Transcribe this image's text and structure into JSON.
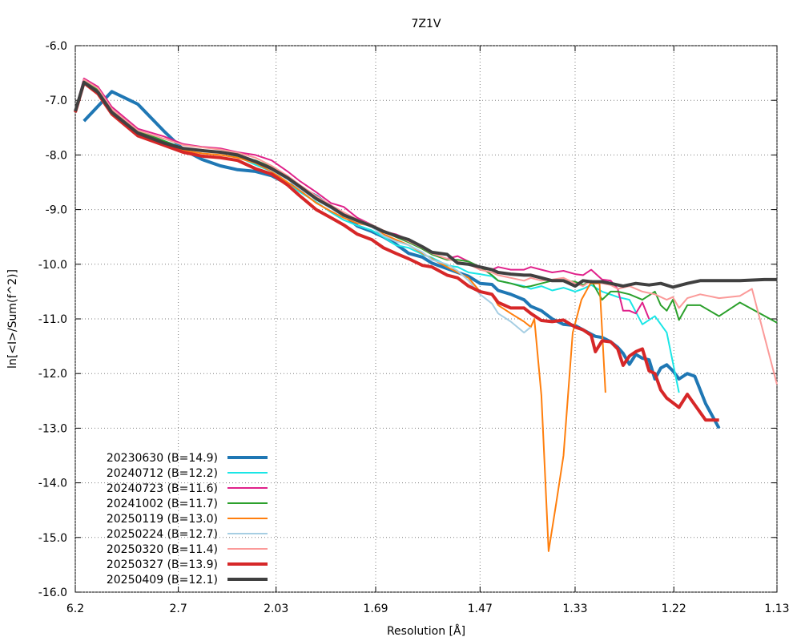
{
  "chart_data": {
    "type": "line",
    "title": "7Z1V",
    "xlabel": "Resolution [Å]",
    "ylabel": "ln[<I>/Sum(f^2)]",
    "x_scale": "1/d^2",
    "xlim": [
      6.2,
      1.13
    ],
    "ylim": [
      -16.0,
      -6.0
    ],
    "grid": true,
    "legend_position": "bottom-left",
    "x_ticks": [
      "6.2",
      "2.7",
      "2.03",
      "1.69",
      "1.47",
      "1.33",
      "1.22",
      "1.13"
    ],
    "y_ticks": [
      "-6.0",
      "-7.0",
      "-8.0",
      "-9.0",
      "-10.0",
      "-11.0",
      "-12.0",
      "-13.0",
      "-14.0",
      "-15.0",
      "-16.0"
    ],
    "series": [
      {
        "name": "20230630 (B=14.9)",
        "color": "#1f77b4",
        "width": 4,
        "x": [
          5.32,
          3.91,
          3.27,
          2.87,
          2.65,
          2.48,
          2.34,
          2.23,
          2.13,
          2.05,
          1.98,
          1.93,
          1.87,
          1.82,
          1.78,
          1.74,
          1.7,
          1.67,
          1.64,
          1.61,
          1.58,
          1.56,
          1.53,
          1.51,
          1.49,
          1.47,
          1.45,
          1.44,
          1.42,
          1.4,
          1.39,
          1.375,
          1.36,
          1.345,
          1.33,
          1.32,
          1.31,
          1.305,
          1.297,
          1.287,
          1.279,
          1.273,
          1.266,
          1.259,
          1.252,
          1.245,
          1.239,
          1.233,
          1.227,
          1.221,
          1.215,
          1.207,
          1.2,
          1.19,
          1.178
        ],
        "y": [
          -7.38,
          -6.84,
          -7.07,
          -7.56,
          -7.9,
          -8.08,
          -8.2,
          -8.27,
          -8.3,
          -8.38,
          -8.53,
          -8.6,
          -8.75,
          -8.95,
          -9.1,
          -9.3,
          -9.4,
          -9.5,
          -9.63,
          -9.8,
          -9.87,
          -9.98,
          -10.08,
          -10.15,
          -10.22,
          -10.35,
          -10.37,
          -10.48,
          -10.55,
          -10.65,
          -10.77,
          -10.85,
          -11.0,
          -11.1,
          -11.12,
          -11.2,
          -11.28,
          -11.32,
          -11.34,
          -11.42,
          -11.52,
          -11.63,
          -11.83,
          -11.65,
          -11.72,
          -11.75,
          -12.1,
          -11.9,
          -11.84,
          -11.95,
          -12.1,
          -12.0,
          -12.05,
          -12.55,
          -13.0
        ]
      },
      {
        "name": "20240712 (B=12.2)",
        "color": "#1ae6e6",
        "width": 2,
        "x": [
          6.2,
          5.32,
          4.45,
          3.91,
          3.27,
          2.87,
          2.65,
          2.48,
          2.34,
          2.23,
          2.13,
          2.05,
          1.98,
          1.93,
          1.87,
          1.82,
          1.78,
          1.74,
          1.7,
          1.67,
          1.64,
          1.61,
          1.58,
          1.56,
          1.53,
          1.51,
          1.49,
          1.47,
          1.45,
          1.44,
          1.42,
          1.4,
          1.39,
          1.375,
          1.36,
          1.345,
          1.33,
          1.32,
          1.31,
          1.297,
          1.279,
          1.266,
          1.252,
          1.239,
          1.227,
          1.215
        ],
        "y": [
          -7.18,
          -6.68,
          -6.82,
          -7.2,
          -7.55,
          -7.74,
          -7.87,
          -7.92,
          -7.95,
          -8.03,
          -8.18,
          -8.3,
          -8.52,
          -8.68,
          -8.86,
          -9.05,
          -9.19,
          -9.29,
          -9.38,
          -9.5,
          -9.65,
          -9.7,
          -9.82,
          -9.88,
          -10.02,
          -10.05,
          -10.15,
          -10.18,
          -10.22,
          -10.3,
          -10.35,
          -10.4,
          -10.45,
          -10.4,
          -10.48,
          -10.43,
          -10.5,
          -10.45,
          -10.38,
          -10.5,
          -10.6,
          -10.65,
          -11.1,
          -10.95,
          -11.25,
          -12.35
        ]
      },
      {
        "name": "20240723 (B=11.6)",
        "color": "#e0218a",
        "width": 2,
        "x": [
          6.2,
          5.32,
          4.45,
          3.91,
          3.27,
          2.87,
          2.65,
          2.48,
          2.34,
          2.23,
          2.13,
          2.05,
          1.98,
          1.93,
          1.87,
          1.82,
          1.78,
          1.74,
          1.7,
          1.67,
          1.64,
          1.61,
          1.58,
          1.56,
          1.53,
          1.51,
          1.49,
          1.47,
          1.45,
          1.44,
          1.42,
          1.4,
          1.39,
          1.375,
          1.36,
          1.345,
          1.33,
          1.32,
          1.31,
          1.297,
          1.287,
          1.279,
          1.273,
          1.266,
          1.259,
          1.252,
          1.245
        ],
        "y": [
          -7.18,
          -6.6,
          -6.75,
          -7.12,
          -7.52,
          -7.66,
          -7.8,
          -7.85,
          -7.88,
          -7.95,
          -8.0,
          -8.1,
          -8.3,
          -8.48,
          -8.68,
          -8.88,
          -8.95,
          -9.15,
          -9.28,
          -9.4,
          -9.45,
          -9.55,
          -9.72,
          -9.82,
          -9.9,
          -9.85,
          -9.95,
          -10.05,
          -10.1,
          -10.05,
          -10.1,
          -10.1,
          -10.05,
          -10.1,
          -10.15,
          -10.12,
          -10.18,
          -10.2,
          -10.1,
          -10.28,
          -10.3,
          -10.45,
          -10.85,
          -10.85,
          -10.9,
          -10.7,
          -11.0
        ]
      },
      {
        "name": "20241002 (B=11.7)",
        "color": "#2ca02c",
        "width": 2,
        "x": [
          6.2,
          5.32,
          4.45,
          3.91,
          3.27,
          2.87,
          2.65,
          2.48,
          2.34,
          2.23,
          2.13,
          2.05,
          1.98,
          1.93,
          1.87,
          1.82,
          1.78,
          1.74,
          1.7,
          1.67,
          1.64,
          1.61,
          1.58,
          1.56,
          1.53,
          1.51,
          1.49,
          1.47,
          1.45,
          1.44,
          1.42,
          1.4,
          1.39,
          1.375,
          1.36,
          1.345,
          1.33,
          1.32,
          1.31,
          1.297,
          1.287,
          1.279,
          1.266,
          1.252,
          1.239,
          1.233,
          1.227,
          1.221,
          1.215,
          1.207,
          1.195,
          1.178,
          1.16,
          1.13
        ],
        "y": [
          -7.2,
          -6.65,
          -6.8,
          -7.18,
          -7.56,
          -7.74,
          -7.88,
          -7.92,
          -7.95,
          -8.02,
          -8.1,
          -8.22,
          -8.4,
          -8.58,
          -8.78,
          -8.92,
          -9.08,
          -9.2,
          -9.3,
          -9.4,
          -9.5,
          -9.6,
          -9.72,
          -9.82,
          -9.92,
          -9.92,
          -9.95,
          -10.05,
          -10.2,
          -10.3,
          -10.35,
          -10.42,
          -10.4,
          -10.35,
          -10.3,
          -10.3,
          -10.32,
          -10.38,
          -10.3,
          -10.65,
          -10.5,
          -10.5,
          -10.55,
          -10.65,
          -10.5,
          -10.75,
          -10.85,
          -10.65,
          -11.02,
          -10.75,
          -10.75,
          -10.95,
          -10.7,
          -11.07
        ]
      },
      {
        "name": "20250119 (B=13.0)",
        "color": "#ff7f0e",
        "width": 2,
        "x": [
          6.2,
          5.32,
          4.45,
          3.91,
          3.27,
          2.87,
          2.65,
          2.48,
          2.34,
          2.23,
          2.13,
          2.05,
          1.98,
          1.93,
          1.87,
          1.82,
          1.78,
          1.74,
          1.7,
          1.67,
          1.64,
          1.61,
          1.58,
          1.56,
          1.53,
          1.51,
          1.49,
          1.47,
          1.45,
          1.44,
          1.42,
          1.4,
          1.39,
          1.385,
          1.375,
          1.365,
          1.355,
          1.345,
          1.333,
          1.322,
          1.311,
          1.3,
          1.293
        ],
        "y": [
          -7.22,
          -6.7,
          -6.85,
          -7.22,
          -7.62,
          -7.8,
          -7.92,
          -7.97,
          -8.0,
          -8.05,
          -8.15,
          -8.3,
          -8.5,
          -8.65,
          -8.88,
          -9.03,
          -9.15,
          -9.25,
          -9.3,
          -9.45,
          -9.55,
          -9.65,
          -9.8,
          -9.9,
          -10.05,
          -10.15,
          -10.25,
          -10.5,
          -10.55,
          -10.75,
          -10.9,
          -11.05,
          -11.15,
          -11.0,
          -12.4,
          -15.25,
          -14.4,
          -13.5,
          -11.25,
          -10.65,
          -10.35,
          -10.35,
          -12.35
        ]
      },
      {
        "name": "20250224 (B=12.7)",
        "color": "#a6cee3",
        "width": 2,
        "x": [
          6.2,
          5.32,
          4.45,
          3.91,
          3.27,
          2.87,
          2.65,
          2.48,
          2.34,
          2.23,
          2.13,
          2.05,
          1.98,
          1.93,
          1.87,
          1.82,
          1.78,
          1.74,
          1.7,
          1.67,
          1.64,
          1.61,
          1.58,
          1.56,
          1.53,
          1.51,
          1.49,
          1.47,
          1.45,
          1.44,
          1.42,
          1.4,
          1.39
        ],
        "y": [
          -7.2,
          -6.68,
          -6.84,
          -7.2,
          -7.6,
          -7.78,
          -7.88,
          -7.92,
          -7.95,
          -8.0,
          -8.12,
          -8.28,
          -8.45,
          -8.62,
          -8.82,
          -8.98,
          -9.12,
          -9.22,
          -9.32,
          -9.48,
          -9.58,
          -9.65,
          -9.78,
          -9.92,
          -10.0,
          -10.12,
          -10.3,
          -10.55,
          -10.72,
          -10.9,
          -11.05,
          -11.25,
          -11.15
        ]
      },
      {
        "name": "20250320 (B=11.4)",
        "color": "#fb9a99",
        "width": 2,
        "x": [
          6.2,
          5.32,
          4.45,
          3.91,
          3.27,
          2.87,
          2.65,
          2.48,
          2.34,
          2.23,
          2.13,
          2.05,
          1.98,
          1.93,
          1.87,
          1.82,
          1.78,
          1.74,
          1.7,
          1.67,
          1.64,
          1.61,
          1.58,
          1.56,
          1.53,
          1.51,
          1.49,
          1.47,
          1.45,
          1.44,
          1.42,
          1.4,
          1.39,
          1.375,
          1.36,
          1.345,
          1.33,
          1.32,
          1.31,
          1.297,
          1.287,
          1.279,
          1.266,
          1.252,
          1.239,
          1.227,
          1.221,
          1.215,
          1.207,
          1.195,
          1.178,
          1.16,
          1.15,
          1.13
        ],
        "y": [
          -7.2,
          -6.62,
          -6.78,
          -7.16,
          -7.55,
          -7.7,
          -7.82,
          -7.86,
          -7.9,
          -7.96,
          -8.05,
          -8.2,
          -8.38,
          -8.55,
          -8.75,
          -8.92,
          -9.05,
          -9.18,
          -9.28,
          -9.38,
          -9.48,
          -9.58,
          -9.7,
          -9.8,
          -9.9,
          -9.95,
          -10.0,
          -10.1,
          -10.15,
          -10.2,
          -10.25,
          -10.3,
          -10.25,
          -10.3,
          -10.28,
          -10.25,
          -10.35,
          -10.4,
          -10.3,
          -10.35,
          -10.38,
          -10.45,
          -10.4,
          -10.5,
          -10.55,
          -10.65,
          -10.6,
          -10.8,
          -10.62,
          -10.55,
          -10.62,
          -10.58,
          -10.45,
          -12.2
        ]
      },
      {
        "name": "20250327 (B=13.9)",
        "color": "#d62728",
        "width": 4,
        "x": [
          6.2,
          5.32,
          4.45,
          3.91,
          3.27,
          2.87,
          2.65,
          2.48,
          2.34,
          2.23,
          2.13,
          2.05,
          1.98,
          1.93,
          1.87,
          1.82,
          1.78,
          1.74,
          1.7,
          1.67,
          1.64,
          1.61,
          1.58,
          1.56,
          1.53,
          1.51,
          1.49,
          1.47,
          1.45,
          1.44,
          1.42,
          1.4,
          1.39,
          1.375,
          1.36,
          1.345,
          1.33,
          1.32,
          1.31,
          1.305,
          1.297,
          1.287,
          1.279,
          1.273,
          1.266,
          1.259,
          1.252,
          1.245,
          1.239,
          1.233,
          1.227,
          1.215,
          1.207,
          1.19,
          1.178
        ],
        "y": [
          -7.22,
          -6.68,
          -6.88,
          -7.25,
          -7.65,
          -7.82,
          -7.95,
          -8.02,
          -8.05,
          -8.1,
          -8.25,
          -8.35,
          -8.55,
          -8.75,
          -9.0,
          -9.15,
          -9.28,
          -9.45,
          -9.55,
          -9.7,
          -9.8,
          -9.9,
          -10.02,
          -10.05,
          -10.2,
          -10.25,
          -10.4,
          -10.5,
          -10.55,
          -10.7,
          -10.8,
          -10.8,
          -10.9,
          -11.03,
          -11.05,
          -11.02,
          -11.15,
          -11.2,
          -11.3,
          -11.6,
          -11.4,
          -11.42,
          -11.55,
          -11.85,
          -11.68,
          -11.6,
          -11.55,
          -11.95,
          -12.0,
          -12.3,
          -12.45,
          -12.62,
          -12.38,
          -12.85,
          -12.85
        ]
      },
      {
        "name": "20250409 (B=12.1)",
        "color": "#404040",
        "width": 4,
        "x": [
          6.2,
          5.32,
          4.45,
          3.91,
          3.27,
          2.87,
          2.65,
          2.48,
          2.34,
          2.23,
          2.13,
          2.05,
          1.98,
          1.93,
          1.87,
          1.82,
          1.78,
          1.74,
          1.7,
          1.67,
          1.64,
          1.61,
          1.58,
          1.56,
          1.53,
          1.51,
          1.49,
          1.47,
          1.45,
          1.44,
          1.42,
          1.4,
          1.39,
          1.375,
          1.36,
          1.345,
          1.33,
          1.32,
          1.31,
          1.297,
          1.287,
          1.273,
          1.259,
          1.245,
          1.233,
          1.221,
          1.207,
          1.195,
          1.178,
          1.16,
          1.14,
          1.13
        ],
        "y": [
          -7.2,
          -6.67,
          -6.85,
          -7.22,
          -7.6,
          -7.78,
          -7.88,
          -7.92,
          -7.95,
          -8.0,
          -8.12,
          -8.25,
          -8.42,
          -8.58,
          -8.8,
          -8.95,
          -9.1,
          -9.2,
          -9.3,
          -9.4,
          -9.48,
          -9.55,
          -9.68,
          -9.78,
          -9.82,
          -9.98,
          -10.0,
          -10.05,
          -10.1,
          -10.15,
          -10.18,
          -10.2,
          -10.2,
          -10.25,
          -10.3,
          -10.3,
          -10.4,
          -10.3,
          -10.32,
          -10.32,
          -10.35,
          -10.4,
          -10.35,
          -10.38,
          -10.35,
          -10.42,
          -10.35,
          -10.3,
          -10.3,
          -10.3,
          -10.28,
          -10.28
        ]
      }
    ]
  }
}
